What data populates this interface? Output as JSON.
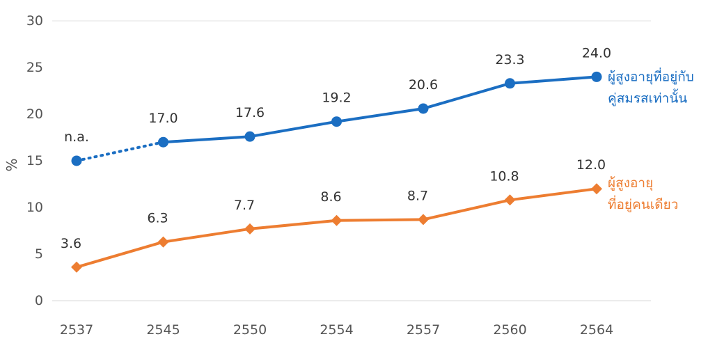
{
  "chart_data": {
    "type": "line",
    "ylabel": "%",
    "ylim": [
      0,
      30
    ],
    "yticks": [
      "0",
      "5",
      "10",
      "15",
      "20",
      "25",
      "30"
    ],
    "categories": [
      "2537",
      "2545",
      "2550",
      "2554",
      "2557",
      "2560",
      "2564"
    ],
    "gridlines": "top-only",
    "series": [
      {
        "name": "ผู้สูงอายุที่อยู่กับคู่สมรสเท่านั้น",
        "legend_lines": [
          "ผู้สูงอายุที่อยู่กับ",
          "คู่สมรสเท่านั้น"
        ],
        "color": "#1B6EC2",
        "marker": "circle",
        "values": [
          15.0,
          17.0,
          17.6,
          19.2,
          20.6,
          23.3,
          24.0
        ],
        "labels": [
          "n.a.",
          "17.0",
          "17.6",
          "19.2",
          "20.6",
          "23.3",
          "24.0"
        ],
        "dotted_first_segment": true
      },
      {
        "name": "ผู้สูงอายุที่อยู่คนเดียว",
        "legend_lines": [
          "ผู้สูงอายุ",
          "ที่อยู่คนเดียว"
        ],
        "color": "#ED7D31",
        "marker": "diamond",
        "values": [
          3.6,
          6.3,
          7.7,
          8.6,
          8.7,
          10.8,
          12.0
        ],
        "labels": [
          "3.6",
          "6.3",
          "7.7",
          "8.6",
          "8.7",
          "10.8",
          "12.0"
        ],
        "dotted_first_segment": false
      }
    ]
  }
}
